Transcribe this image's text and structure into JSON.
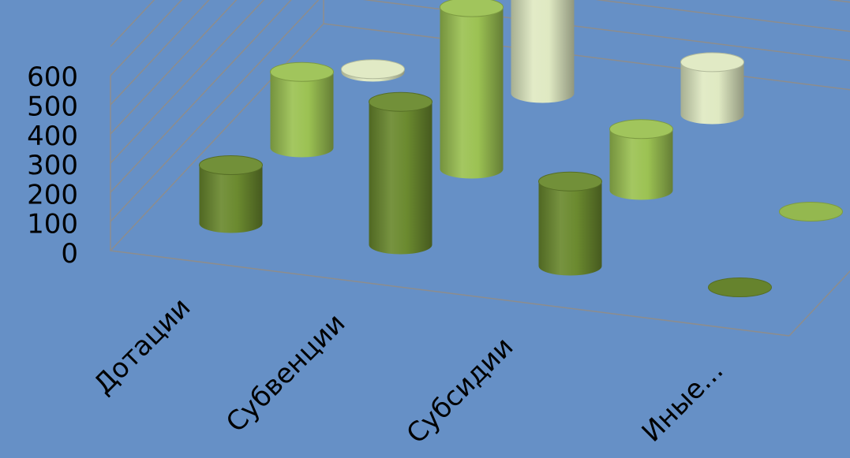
{
  "chart_data": {
    "type": "bar",
    "subtype": "3d-cylinder",
    "categories": [
      "Дотации",
      "Субвенции",
      "Субсидии",
      "Иные..."
    ],
    "series": [
      {
        "values": [
          200,
          490,
          290,
          0
        ],
        "color": "#6b8a2f"
      },
      {
        "values": [
          260,
          555,
          210,
          0
        ],
        "color": "#9cc253"
      },
      {
        "values": [
          10,
          430,
          180,
          0
        ],
        "color": "#dfe9c2"
      }
    ],
    "ylim": [
      0,
      600
    ],
    "yticks": [
      "0",
      "100",
      "200",
      "300",
      "400",
      "500",
      "600"
    ],
    "grid": true,
    "legend": "none",
    "title": "",
    "xlabel": "",
    "ylabel": ""
  }
}
